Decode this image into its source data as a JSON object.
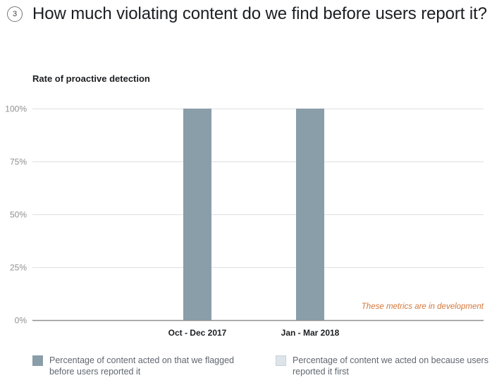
{
  "header": {
    "step_number": "3",
    "title": "How much violating content do we find before users report it?"
  },
  "colors": {
    "flagged": "#8a9ea9",
    "reported": "#dde5ea",
    "note": "#d4773a",
    "grid": "#dddfe2",
    "axis": "#909090",
    "tick_label": "#909090"
  },
  "chart_data": {
    "type": "bar",
    "title": "Rate of proactive detection",
    "xlabel": "",
    "ylabel": "",
    "categories": [
      "Oct - Dec 2017",
      "Jan - Mar 2018"
    ],
    "series": [
      {
        "name": "Percentage of content acted on that we flagged before users reported it",
        "values": [
          100,
          100
        ]
      },
      {
        "name": "Percentage of content we acted on because users reported it first",
        "values": [
          0,
          0
        ]
      }
    ],
    "stacked": true,
    "ylim": [
      0,
      100
    ],
    "yticks": [
      0,
      25,
      50,
      75,
      100
    ],
    "ytick_labels": [
      "0%",
      "25%",
      "50%",
      "75%",
      "100%"
    ],
    "grid": true,
    "legend_position": "bottom",
    "annotation": "These metrics are in development"
  },
  "legend": [
    {
      "label": "Percentage of content acted on that we flagged before users reported it"
    },
    {
      "label": "Percentage of content we acted on because users reported it first"
    }
  ]
}
